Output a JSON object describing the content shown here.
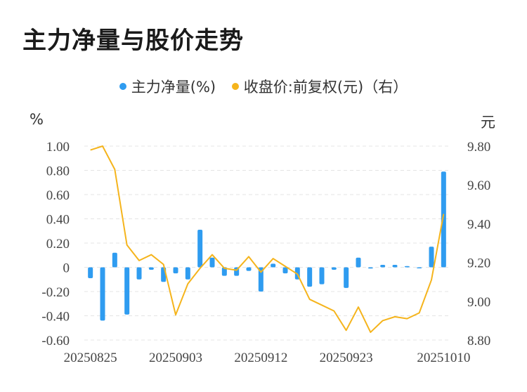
{
  "title": "主力净量与股价走势",
  "legend": [
    {
      "label": "主力净量(%)",
      "color": "#2f9cf0"
    },
    {
      "label": "收盘价:前复权(元)（右）",
      "color": "#f5b41c"
    }
  ],
  "left_unit": "%",
  "right_unit": "元",
  "chart_data": {
    "type": "bar",
    "title": "主力净量与股价走势",
    "x_tick_labels": [
      "20250825",
      "20250903",
      "20250912",
      "20250923",
      "20251010"
    ],
    "y_left": {
      "unit": "%",
      "ylim": [
        -0.6,
        1.0
      ],
      "ticks": [
        "1.00",
        "0.80",
        "0.60",
        "0.40",
        "0.20",
        "0",
        "-0.20",
        "-0.40",
        "-0.60"
      ]
    },
    "y_right": {
      "unit": "元",
      "ylim": [
        8.8,
        9.8
      ],
      "ticks": [
        "9.80",
        "9.60",
        "9.40",
        "9.20",
        "9.00",
        "8.80"
      ]
    },
    "grid": true,
    "legend_position": "top",
    "series": [
      {
        "name": "主力净量(%)",
        "type": "bar",
        "axis": "left",
        "color": "#2f9cf0",
        "values": [
          -0.09,
          -0.44,
          0.12,
          -0.39,
          -0.1,
          -0.02,
          -0.12,
          -0.05,
          -0.1,
          0.31,
          0.08,
          -0.07,
          -0.07,
          -0.03,
          -0.2,
          0.03,
          -0.05,
          -0.1,
          -0.16,
          -0.14,
          -0.02,
          -0.17,
          0.08,
          -0.01,
          0.02,
          0.02,
          0.01,
          0.0,
          0.17,
          0.79
        ]
      },
      {
        "name": "收盘价:前复权(元)（右）",
        "type": "line",
        "axis": "right",
        "color": "#f5b41c",
        "values": [
          9.78,
          9.8,
          9.68,
          9.29,
          9.21,
          9.24,
          9.19,
          8.93,
          9.09,
          9.17,
          9.24,
          9.17,
          9.16,
          9.23,
          9.15,
          9.22,
          9.18,
          9.14,
          9.01,
          8.98,
          8.95,
          8.85,
          8.97,
          8.84,
          8.9,
          8.92,
          8.91,
          8.94,
          9.11,
          9.45
        ]
      }
    ]
  }
}
